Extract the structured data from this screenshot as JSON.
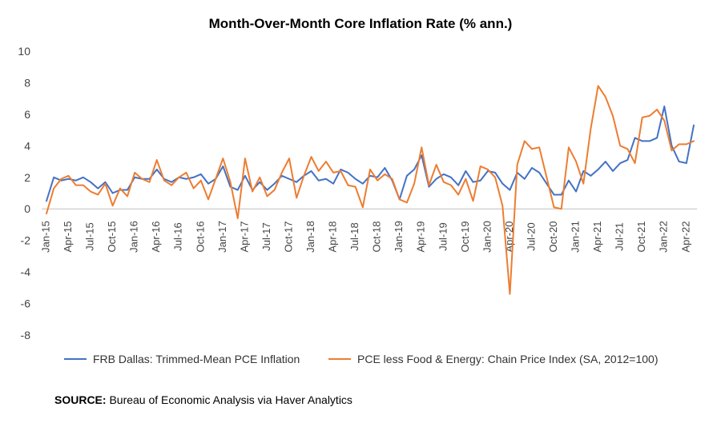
{
  "chart_data": {
    "type": "line",
    "title": "Month-Over-Month Core Inflation Rate (% ann.)",
    "xlabel": "",
    "ylabel": "",
    "ylim": [
      -8,
      10
    ],
    "yticks": [
      10,
      8,
      6,
      4,
      2,
      0,
      -2,
      -4,
      -6,
      -8
    ],
    "x": [
      "Jan-15",
      "Feb-15",
      "Mar-15",
      "Apr-15",
      "May-15",
      "Jun-15",
      "Jul-15",
      "Aug-15",
      "Sep-15",
      "Oct-15",
      "Nov-15",
      "Dec-15",
      "Jan-16",
      "Feb-16",
      "Mar-16",
      "Apr-16",
      "May-16",
      "Jun-16",
      "Jul-16",
      "Aug-16",
      "Sep-16",
      "Oct-16",
      "Nov-16",
      "Dec-16",
      "Jan-17",
      "Feb-17",
      "Mar-17",
      "Apr-17",
      "May-17",
      "Jun-17",
      "Jul-17",
      "Aug-17",
      "Sep-17",
      "Oct-17",
      "Nov-17",
      "Dec-17",
      "Jan-18",
      "Feb-18",
      "Mar-18",
      "Apr-18",
      "May-18",
      "Jun-18",
      "Jul-18",
      "Aug-18",
      "Sep-18",
      "Oct-18",
      "Nov-18",
      "Dec-18",
      "Jan-19",
      "Feb-19",
      "Mar-19",
      "Apr-19",
      "May-19",
      "Jun-19",
      "Jul-19",
      "Aug-19",
      "Sep-19",
      "Oct-19",
      "Nov-19",
      "Dec-19",
      "Jan-20",
      "Feb-20",
      "Mar-20",
      "Apr-20",
      "May-20",
      "Jun-20",
      "Jul-20",
      "Aug-20",
      "Sep-20",
      "Oct-20",
      "Nov-20",
      "Dec-20",
      "Jan-21",
      "Feb-21",
      "Mar-21",
      "Apr-21",
      "May-21",
      "Jun-21",
      "Jul-21",
      "Aug-21",
      "Sep-21",
      "Oct-21",
      "Nov-21",
      "Dec-21",
      "Jan-22",
      "Feb-22",
      "Mar-22",
      "Apr-22",
      "May-22"
    ],
    "xtick_labels": [
      "Jan-15",
      "Apr-15",
      "Jul-15",
      "Oct-15",
      "Jan-16",
      "Apr-16",
      "Jul-16",
      "Oct-16",
      "Jan-17",
      "Apr-17",
      "Jul-17",
      "Oct-17",
      "Jan-18",
      "Apr-18",
      "Jul-18",
      "Oct-18",
      "Jan-19",
      "Apr-19",
      "Jul-19",
      "Oct-19",
      "Jan-20",
      "Apr-20",
      "Jul-20",
      "Oct-20",
      "Jan-21",
      "Apr-21",
      "Jul-21",
      "Oct-21",
      "Jan-22",
      "Apr-22"
    ],
    "series": [
      {
        "name": "FRB Dallas: Trimmed-Mean PCE Inflation",
        "color": "#4472C4",
        "values": [
          0.5,
          2.0,
          1.8,
          1.9,
          1.8,
          2.0,
          1.7,
          1.3,
          1.7,
          1.0,
          1.2,
          1.2,
          2.0,
          1.9,
          1.9,
          2.5,
          1.9,
          1.7,
          2.0,
          1.9,
          2.0,
          2.2,
          1.6,
          1.9,
          2.7,
          1.4,
          1.2,
          2.1,
          1.2,
          1.7,
          1.2,
          1.6,
          2.1,
          1.9,
          1.7,
          2.1,
          2.4,
          1.8,
          1.9,
          1.6,
          2.5,
          2.3,
          1.9,
          1.6,
          2.1,
          2.0,
          2.6,
          1.8,
          0.6,
          2.1,
          2.5,
          3.4,
          1.4,
          1.9,
          2.2,
          2.0,
          1.5,
          2.4,
          1.7,
          1.8,
          2.4,
          2.3,
          1.6,
          1.2,
          2.3,
          1.9,
          2.6,
          2.3,
          1.6,
          0.9,
          0.9,
          1.8,
          1.1,
          2.4,
          2.1,
          2.5,
          3.0,
          2.4,
          2.9,
          3.1,
          4.5,
          4.3,
          4.3,
          4.5,
          6.5,
          4.0,
          3.0,
          2.9,
          5.3
        ]
      },
      {
        "name": "PCE less Food & Energy: Chain Price Index (SA, 2012=100)",
        "color": "#ED7D31",
        "values": [
          -0.3,
          1.3,
          1.9,
          2.1,
          1.5,
          1.5,
          1.1,
          0.9,
          1.6,
          0.2,
          1.3,
          0.8,
          2.3,
          1.9,
          1.7,
          3.1,
          1.8,
          1.5,
          2.0,
          2.3,
          1.3,
          1.8,
          0.6,
          1.9,
          3.2,
          1.7,
          -0.6,
          3.2,
          1.1,
          2.0,
          0.8,
          1.2,
          2.3,
          3.2,
          0.7,
          2.1,
          3.3,
          2.4,
          3.0,
          2.3,
          2.4,
          1.5,
          1.4,
          0.1,
          2.5,
          1.8,
          2.2,
          1.9,
          0.6,
          0.4,
          1.6,
          3.9,
          1.5,
          2.8,
          1.7,
          1.5,
          0.9,
          1.9,
          0.5,
          2.7,
          2.5,
          2.0,
          0.2,
          -5.4,
          2.8,
          4.3,
          3.8,
          3.9,
          2.0,
          0.1,
          0.0,
          3.9,
          3.0,
          1.6,
          5.1,
          7.8,
          7.1,
          5.9,
          4.0,
          3.8,
          2.9,
          5.8,
          5.9,
          6.3,
          5.6,
          3.7,
          4.1,
          4.1,
          4.3
        ]
      }
    ],
    "legend_position": "bottom"
  },
  "source": {
    "label": "SOURCE:",
    "text": " Bureau of Economic Analysis via Haver Analytics"
  }
}
